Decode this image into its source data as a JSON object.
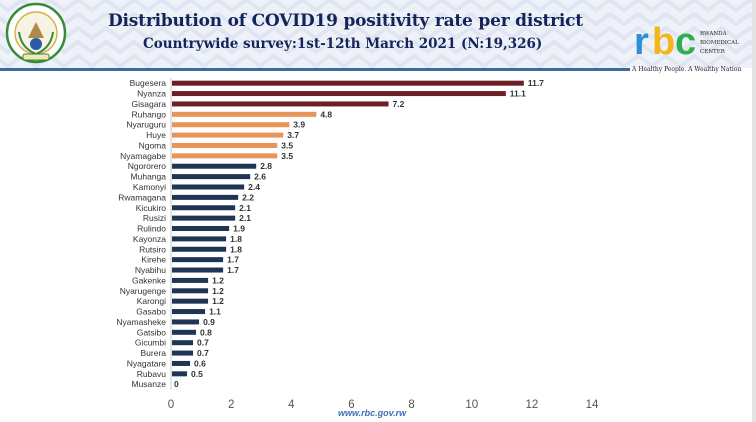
{
  "header": {
    "title": "Distribution of COVID19 positivity rate per district",
    "subtitle": "Countrywide survey:1st-12th March 2021 (N:19,326)",
    "emblem_icon": "rwanda-coat-of-arms-icon",
    "logo": {
      "letters": [
        "r",
        "b",
        "c"
      ],
      "letter_colors": [
        "#2e8fd6",
        "#f2b51c",
        "#2fae4f"
      ],
      "name_lines": [
        "RWANDA",
        "BIOMEDICAL",
        "CENTER"
      ],
      "tagline": "A Healthy People. A Wealthy Nation"
    }
  },
  "footer": {
    "url": "www.rbc.gov.rw"
  },
  "colors": {
    "high": "#6b1e24",
    "medium": "#e8955a",
    "low": "#1f3556",
    "title": "#14245a"
  },
  "chart_data": {
    "type": "bar",
    "orientation": "horizontal",
    "title": "Distribution of COVID19 positivity rate per district",
    "subtitle": "Countrywide survey:1st-12th March 2021 (N:19,326)",
    "xlabel": "",
    "ylabel": "",
    "xlim": [
      0,
      14
    ],
    "xticks": [
      0,
      2,
      4,
      6,
      8,
      10,
      12,
      14
    ],
    "grid": false,
    "legend": "none",
    "categories": [
      "Bugesera",
      "Nyanza",
      "Gisagara",
      "Ruhango",
      "Nyaruguru",
      "Huye",
      "Ngoma",
      "Nyamagabe",
      "Ngororero",
      "Muhanga",
      "Kamonyi",
      "Rwamagana",
      "Kicukiro",
      "Rusizi",
      "Rulindo",
      "Kayonza",
      "Rutsiro",
      "Kirehe",
      "Nyabihu",
      "Gakenke",
      "Nyarugenge",
      "Karongi",
      "Gasabo",
      "Nyamasheke",
      "Gatsibo",
      "Gicumbi",
      "Burera",
      "Nyagatare",
      "Rubavu",
      "Musanze"
    ],
    "values": [
      11.7,
      11.1,
      7.2,
      4.8,
      3.9,
      3.7,
      3.5,
      3.5,
      2.8,
      2.6,
      2.4,
      2.2,
      2.1,
      2.1,
      1.9,
      1.8,
      1.8,
      1.7,
      1.7,
      1.2,
      1.2,
      1.2,
      1.1,
      0.9,
      0.8,
      0.7,
      0.7,
      0.6,
      0.5,
      0
    ],
    "value_labels": [
      "11.7",
      "11.1",
      "7.2",
      "4.8",
      "3.9",
      "3.7",
      "3.5",
      "3.5",
      "2.8",
      "2.6",
      "2.4",
      "2.2",
      "2.1",
      "2.1",
      "1.9",
      "1.8",
      "1.8",
      "1.7",
      "1.7",
      "1.2",
      "1.2",
      "1.2",
      "1.1",
      "0.9",
      "0.8",
      "0.7",
      "0.7",
      "0.6",
      "0.5",
      "0"
    ],
    "bar_groups": [
      "high",
      "high",
      "high",
      "medium",
      "medium",
      "medium",
      "medium",
      "medium",
      "low",
      "low",
      "low",
      "low",
      "low",
      "low",
      "low",
      "low",
      "low",
      "low",
      "low",
      "low",
      "low",
      "low",
      "low",
      "low",
      "low",
      "low",
      "low",
      "low",
      "low",
      "low"
    ]
  }
}
